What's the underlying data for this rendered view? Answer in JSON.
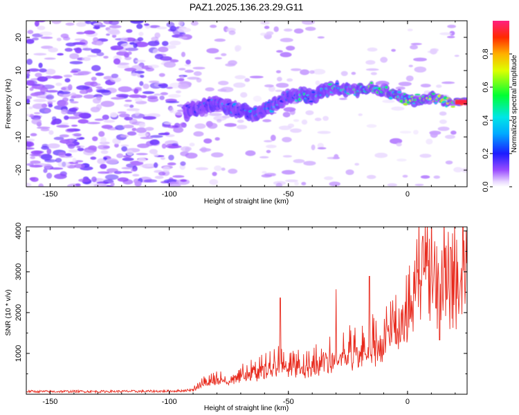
{
  "title": "PAZ1.2025.136.23.29.G11",
  "chart_data": [
    {
      "type": "heatmap",
      "title": "PAZ1.2025.136.23.29.G11",
      "xlabel": "Height of straight line (km)",
      "ylabel": "Frequency (Hz)",
      "xlim": [
        -160,
        25
      ],
      "ylim": [
        -25,
        25
      ],
      "xticks": [
        -150,
        -100,
        -50,
        0
      ],
      "yticks": [
        -20,
        -10,
        0,
        10,
        20
      ],
      "colorbar": {
        "label": "Normalized spectral amplitude",
        "range": [
          0,
          1
        ],
        "ticks": [
          0.0,
          0.2,
          0.4,
          0.6,
          0.8
        ],
        "tick_labels": [
          "0.0",
          "0.2",
          "0.4",
          "0.6",
          "0.8"
        ]
      },
      "signal_trace": {
        "x": [
          -93,
          -90,
          -85,
          -80,
          -75,
          -70,
          -65,
          -60,
          -55,
          -50,
          -45,
          -40,
          -35,
          -30,
          -25,
          -20,
          -15,
          -10,
          -5,
          0,
          5,
          10,
          15,
          20,
          25
        ],
        "freq": [
          -3,
          -1,
          -1,
          0,
          -1,
          -2,
          -3,
          -2,
          0,
          2,
          3,
          2,
          4,
          5,
          4,
          4,
          5,
          4,
          3,
          1,
          1,
          2,
          1,
          0.5,
          0.5
        ],
        "amplitude": [
          0.15,
          0.2,
          0.25,
          0.3,
          0.3,
          0.28,
          0.3,
          0.28,
          0.35,
          0.35,
          0.45,
          0.4,
          0.42,
          0.45,
          0.5,
          0.55,
          0.6,
          0.62,
          0.6,
          0.6,
          0.7,
          0.65,
          0.75,
          0.9,
          0.95
        ]
      }
    },
    {
      "type": "line",
      "xlabel": "Height of straight line (km)",
      "ylabel": "SNR (10 * v/v)",
      "xlim": [
        -160,
        25
      ],
      "ylim": [
        0,
        4100
      ],
      "xticks": [
        -150,
        -100,
        -50,
        0
      ],
      "yticks": [
        1000,
        2000,
        3000,
        4000
      ],
      "color": "#e8291c",
      "series": [
        {
          "x": [
            -160,
            -150,
            -140,
            -130,
            -120,
            -110,
            -100,
            -95,
            -90,
            -85,
            -80,
            -75,
            -70,
            -65,
            -60,
            -55,
            -50,
            -45,
            -40,
            -35,
            -30,
            -25,
            -20,
            -15,
            -10,
            -5,
            0,
            5,
            10,
            15,
            20,
            25
          ],
          "y": [
            70,
            65,
            70,
            68,
            70,
            72,
            75,
            85,
            110,
            280,
            380,
            380,
            420,
            520,
            580,
            700,
            720,
            620,
            700,
            800,
            950,
            1000,
            1000,
            1150,
            1250,
            1700,
            1850,
            2600,
            2700,
            2650,
            2750,
            3000
          ]
        }
      ],
      "peaks": [
        {
          "x": -53.5,
          "y": 2360
        },
        {
          "x": -30,
          "y": 2570
        },
        {
          "x": -16,
          "y": 2890
        },
        {
          "x": 6.5,
          "y": 3870
        },
        {
          "x": 18,
          "y": 3600
        },
        {
          "x": 25,
          "y": 4050
        }
      ],
      "dips": [
        {
          "x": 13.5,
          "y": 1330
        }
      ]
    }
  ]
}
